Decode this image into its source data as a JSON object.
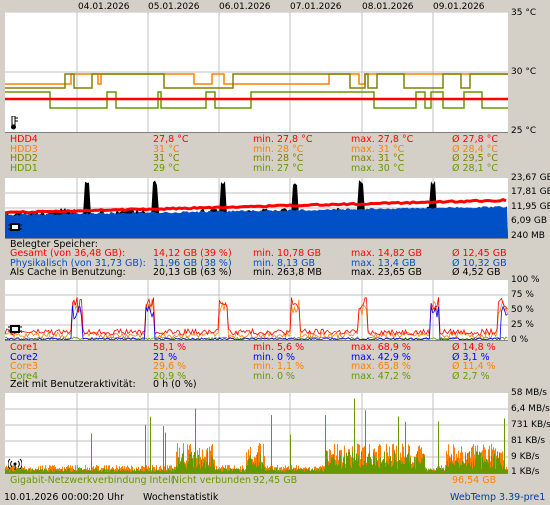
{
  "colors": {
    "red": "#ff0000",
    "orange": "#ff8000",
    "green": "#669900",
    "olive": "#808000",
    "blue": "#0050c8",
    "navy": "#0000ff",
    "purple": "#0000cc"
  },
  "dates": [
    "04.01.2026",
    "05.01.2026",
    "06.01.2026",
    "07.01.2026",
    "08.01.2026",
    "09.01.2026"
  ],
  "temperature": {
    "axis": [
      "35 °C",
      "30 °C",
      "25 °C"
    ],
    "icon": "thermometer-icon",
    "rows": [
      {
        "name": "HDD4",
        "current": "27,8 °C",
        "min": "min. 27,8 °C",
        "max": "max. 27,8 °C",
        "avg": "Ø 27,8 °C",
        "color": "#ff0000"
      },
      {
        "name": "HDD3",
        "current": "31 °C",
        "min": "min. 28 °C",
        "max": "max. 31 °C",
        "avg": "Ø 28,4 °C",
        "color": "#ff8000"
      },
      {
        "name": "HDD2",
        "current": "31 °C",
        "min": "min. 28 °C",
        "max": "max. 31 °C",
        "avg": "Ø 29,5 °C",
        "color": "#808000"
      },
      {
        "name": "HDD1",
        "current": "29 °C",
        "min": "min. 27 °C",
        "max": "max. 30 °C",
        "avg": "Ø 28,1 °C",
        "color": "#669900"
      }
    ]
  },
  "memory": {
    "axis": [
      "23,67 GB",
      "17,81 GB",
      "11,95 GB",
      "6,09 GB",
      "240 MB"
    ],
    "icon": "memory-chip-icon",
    "heading": "Belegter Speicher:",
    "rows": [
      {
        "name": "Gesamt (von 36,48 GB):",
        "current": "14,12 GB (39 %)",
        "min": "min. 10,78 GB",
        "max": "max. 14,82 GB",
        "avg": "Ø 12,45 GB",
        "color": "#ff0000"
      },
      {
        "name": "Physikalisch (von 31,73 GB):",
        "current": "11,96 GB (38 %)",
        "min": "min. 8,13 GB",
        "max": "max. 13,4 GB",
        "avg": "Ø 10,32 GB",
        "color": "#0050c8"
      },
      {
        "name": "Als Cache in Benutzung:",
        "current": "20,13 GB (63 %)",
        "min": "min. 263,8 MB",
        "max": "max. 23,65 GB",
        "avg": "Ø 4,52 GB",
        "color": "#000000"
      }
    ]
  },
  "cpu": {
    "axis": [
      "100 %",
      "75 %",
      "50 %",
      "25 %",
      "0 %"
    ],
    "icon": "cpu-chip-icon",
    "rows": [
      {
        "name": "Core1",
        "current": "58,1 %",
        "min": "min. 5,6 %",
        "max": "max. 68,9 %",
        "avg": "Ø 14,8 %",
        "color": "#ff0000"
      },
      {
        "name": "Core2",
        "current": "21 %",
        "min": "min. 0 %",
        "max": "max. 42,9 %",
        "avg": "Ø 3,1 %",
        "color": "#0000ff"
      },
      {
        "name": "Core3",
        "current": "29,6 %",
        "min": "min. 1,1 %",
        "max": "max. 65,8 %",
        "avg": "Ø 11,4 %",
        "color": "#ff8000"
      },
      {
        "name": "Core4",
        "current": "20,9 %",
        "min": "min. 0 %",
        "max": "max. 47,2 %",
        "avg": "Ø 2,7 %",
        "color": "#669900"
      }
    ],
    "activity": "Zeit mit Benutzeraktivität:",
    "activity_value": "0 h (0 %)"
  },
  "network": {
    "axis": [
      "58 MB/s",
      "6,4 MB/s",
      "731 KB/s",
      "81 KB/s",
      "9 KB/s",
      "1 KB/s"
    ],
    "icon": "network-antenna-icon",
    "name": "Gigabit-Netzwerkverbindung Intel(",
    "status": "Nicht verbunden",
    "total1": "92,45 GB",
    "total2": "96,54 GB"
  },
  "footer": {
    "timestamp": "10.01.2026 00:00:20 Uhr",
    "mode": "Wochenstatistik",
    "app": "WebTemp 3.39-pre1"
  }
}
